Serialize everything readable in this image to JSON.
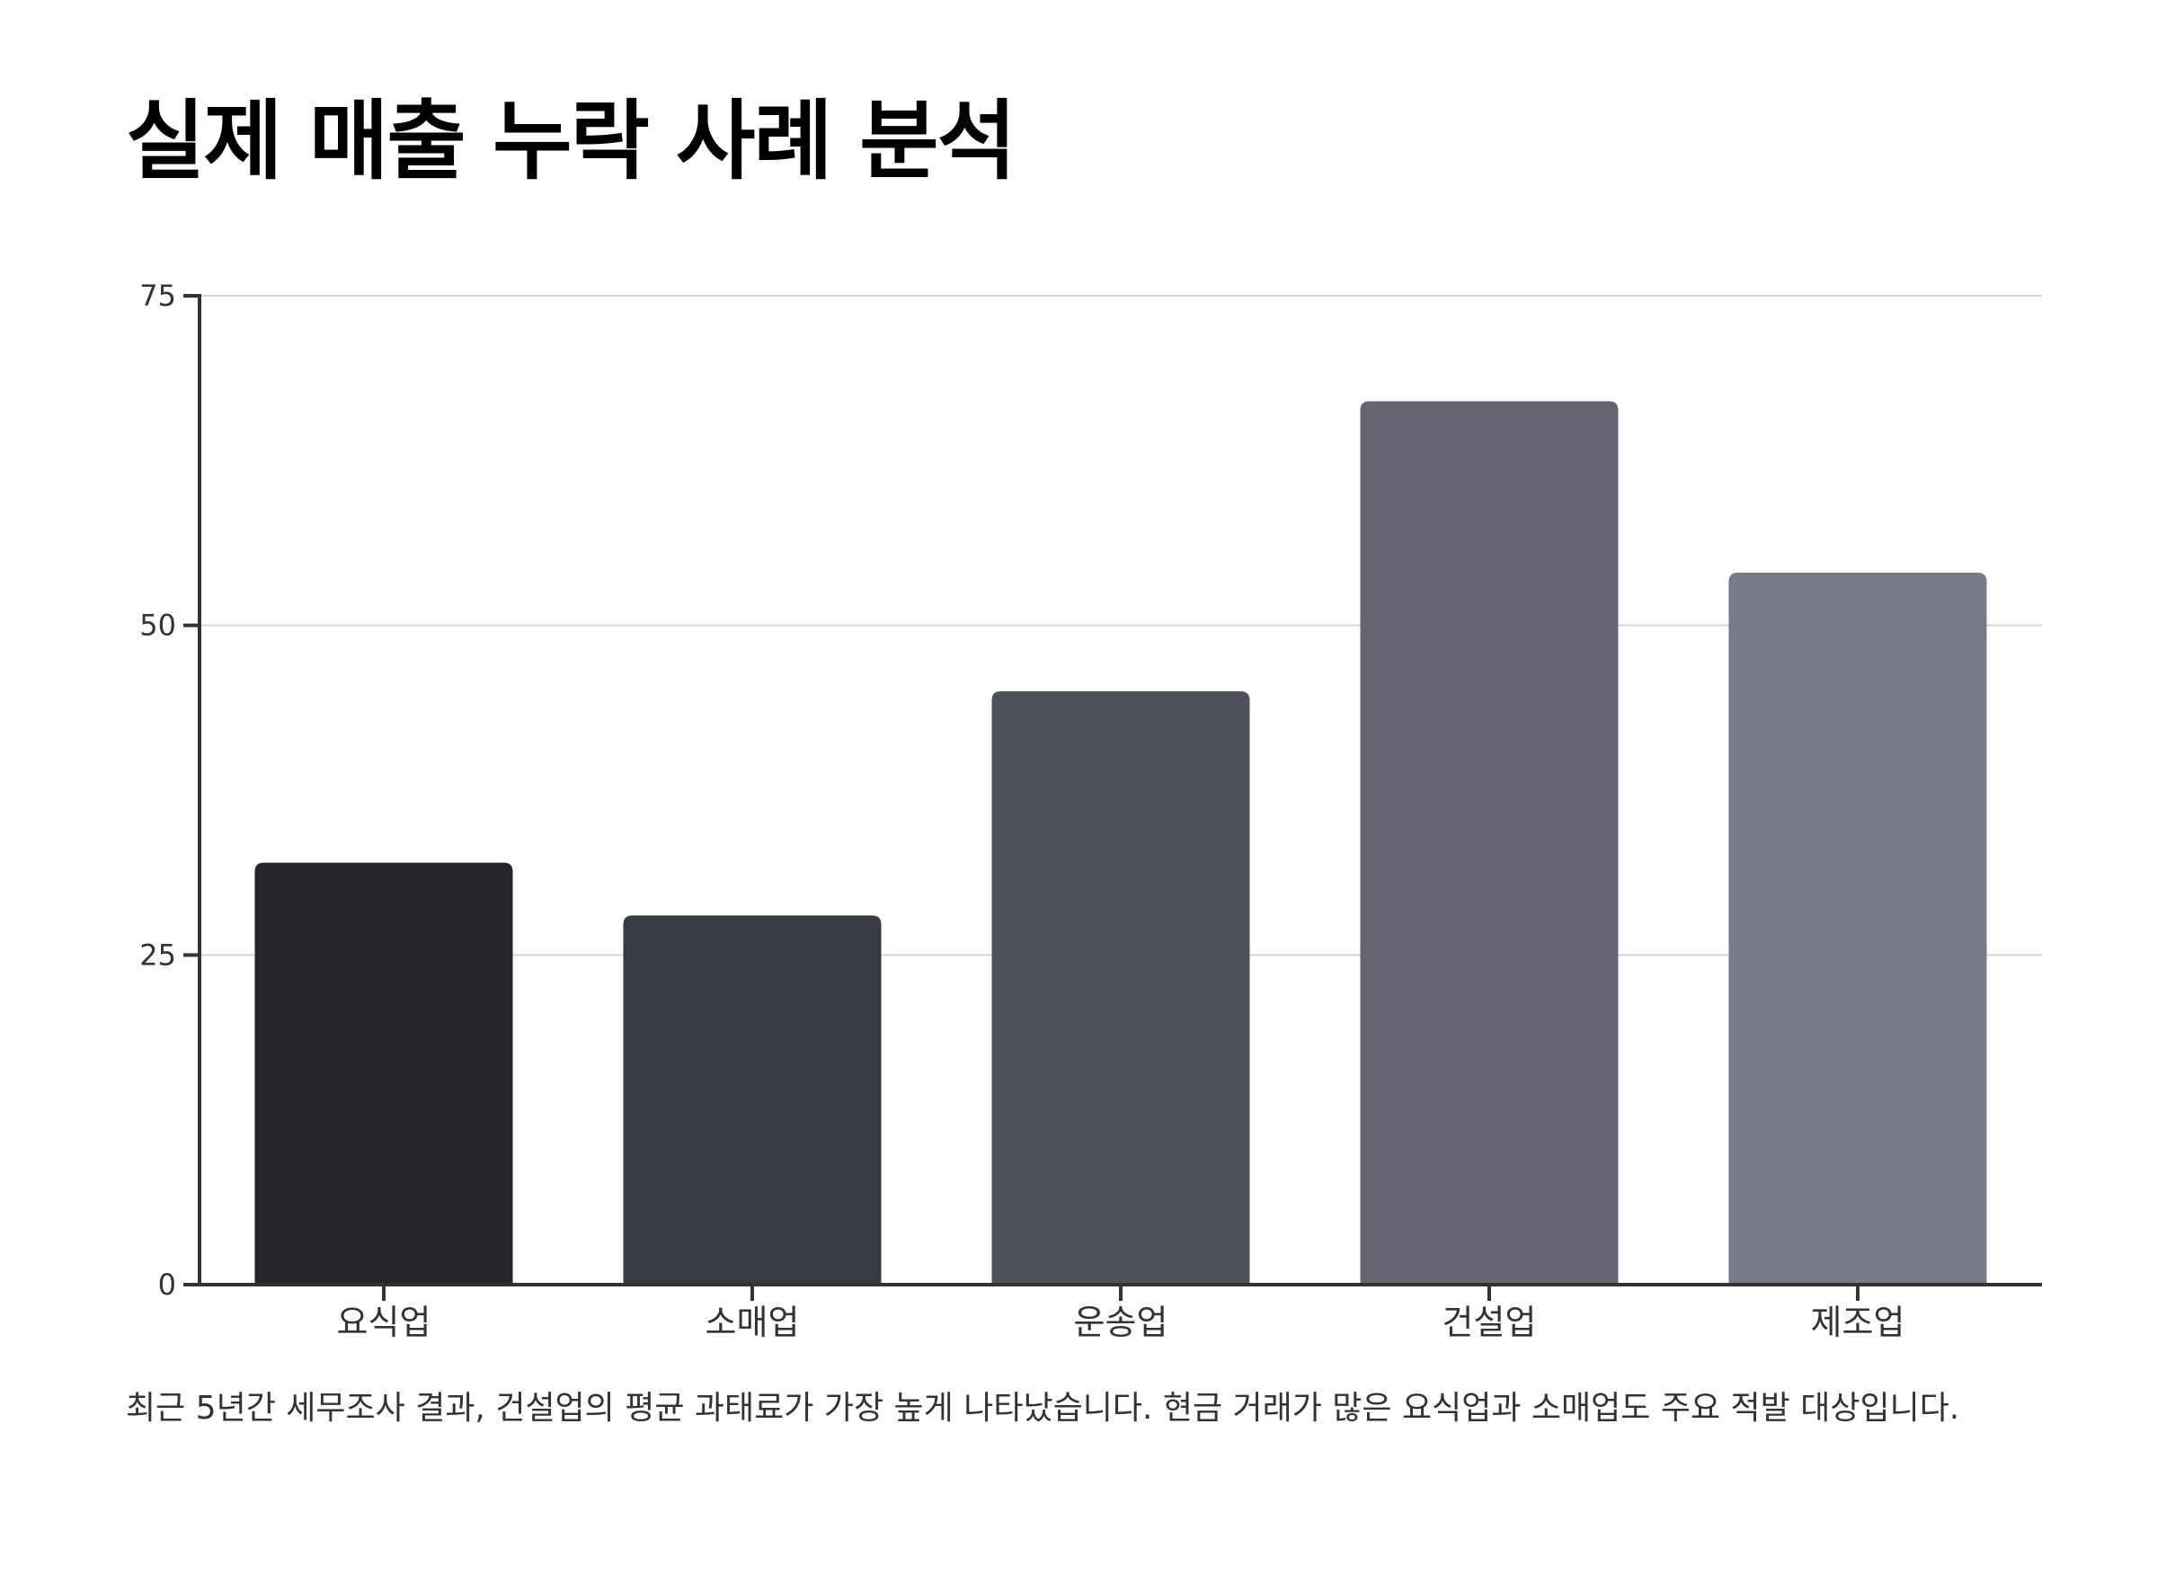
{
  "title": "실제 매출 누락 사례 분석",
  "caption": "최근 5년간 세무조사 결과, 건설업의 평균 과태료가 가장 높게 나타났습니다. 현금 거래가 많은 요식업과 소매업도 주요 적발 대상입니다.",
  "chart_data": {
    "type": "bar",
    "categories": [
      "요식업",
      "소매업",
      "운송업",
      "건설업",
      "제조업"
    ],
    "values": [
      32,
      28,
      45,
      67,
      54
    ],
    "colors": [
      "#25262a",
      "#393b43",
      "#4f515a",
      "#646571",
      "#797a87"
    ],
    "ylim": [
      0,
      75
    ],
    "yticks": [
      0,
      25,
      50,
      75
    ],
    "grid": true,
    "xlabel": "",
    "ylabel": ""
  }
}
